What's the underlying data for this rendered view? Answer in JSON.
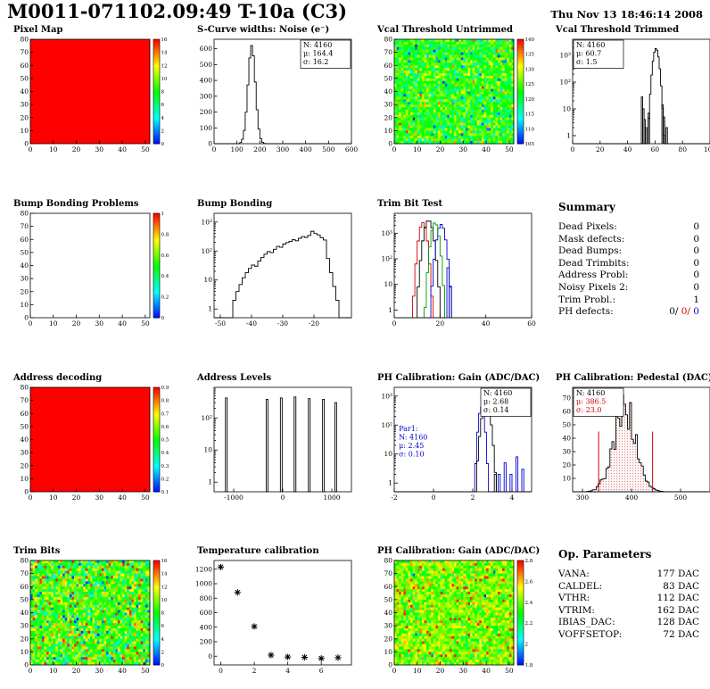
{
  "header": {
    "title": "M0011-071102.09:49 T-10a (C3)",
    "timestamp": "Thu Nov 13 18:46:14 2008"
  },
  "chart_data": [
    {
      "id": "pixel-map",
      "title": "Pixel Map",
      "type": "heatmap",
      "row": 0,
      "col": 0,
      "x": {
        "range": [
          0,
          52
        ],
        "ticks": [
          0,
          10,
          20,
          30,
          40,
          50
        ]
      },
      "y": {
        "range": [
          0,
          80
        ],
        "ticks": [
          0,
          10,
          20,
          30,
          40,
          50,
          60,
          70,
          80
        ]
      },
      "map": {
        "style": "flat",
        "color": "#ff0000"
      },
      "colorbar": {
        "ticks": [
          "0",
          "2",
          "4",
          "6",
          "8",
          "10",
          "12",
          "14",
          "16"
        ]
      }
    },
    {
      "id": "scurve-noise",
      "title": "S-Curve widths: Noise (e⁻)",
      "type": "histogram",
      "row": 0,
      "col": 1,
      "x": {
        "range": [
          0,
          600
        ],
        "ticks": [
          0,
          100,
          200,
          300,
          400,
          500,
          600
        ]
      },
      "y": {
        "range": [
          0,
          660
        ],
        "ticks": [
          0,
          100,
          200,
          300,
          400,
          500,
          600
        ]
      },
      "series": [
        {
          "color": "#000000",
          "binw": 8,
          "gauss": {
            "mean": 164.4,
            "sigma": 16.2,
            "peak": 620
          }
        }
      ],
      "stats": {
        "pos": "tr",
        "lines": [
          {
            "text": "N: 4160",
            "color": "#000000"
          },
          {
            "text": "μ: 164.4",
            "color": "#000000"
          },
          {
            "text": "σ: 16.2",
            "color": "#000000"
          }
        ]
      }
    },
    {
      "id": "vcal-untrimmed",
      "title": "Vcal Threshold Untrimmed",
      "type": "heatmap",
      "row": 0,
      "col": 2,
      "x": {
        "range": [
          0,
          52
        ],
        "ticks": [
          0,
          10,
          20,
          30,
          40,
          50
        ]
      },
      "y": {
        "range": [
          0,
          80
        ],
        "ticks": [
          0,
          10,
          20,
          30,
          40,
          50,
          60,
          70,
          80
        ]
      },
      "map": {
        "style": "noise",
        "mean": 0.52,
        "spread": 0.13,
        "low_frac": 0.02,
        "high_frac": 0.005
      },
      "colorbar": {
        "ticks": [
          "105",
          "110",
          "115",
          "120",
          "125",
          "130",
          "135",
          "140"
        ]
      }
    },
    {
      "id": "vcal-trimmed",
      "title": "Vcal Threshold Trimmed",
      "type": "histogram",
      "row": 0,
      "col": 3,
      "x": {
        "range": [
          0,
          100
        ],
        "ticks": [
          0,
          20,
          40,
          60,
          80,
          100
        ]
      },
      "y": {
        "log": true,
        "range": [
          0.5,
          4000
        ]
      },
      "series": [
        {
          "color": "#000000",
          "binw": 1,
          "gauss": {
            "mean": 60.7,
            "sigma": 1.5,
            "peak": 1800
          },
          "bins": [
            [
              50,
              28
            ],
            [
              51,
              10
            ],
            [
              52,
              4
            ],
            [
              53,
              2
            ],
            [
              55,
              7
            ],
            [
              65,
              14
            ],
            [
              66,
              5
            ],
            [
              68,
              2
            ]
          ]
        }
      ],
      "stats": {
        "pos": "tl",
        "lines": [
          {
            "text": "N: 4160",
            "color": "#000000"
          },
          {
            "text": "μ: 60.7",
            "color": "#000000"
          },
          {
            "text": "σ: 1.5",
            "color": "#000000"
          }
        ]
      }
    },
    {
      "id": "bump-problems",
      "title": "Bump Bonding Problems",
      "type": "heatmap",
      "row": 1,
      "col": 0,
      "x": {
        "range": [
          0,
          52
        ],
        "ticks": [
          0,
          10,
          20,
          30,
          40,
          50
        ]
      },
      "y": {
        "range": [
          0,
          80
        ],
        "ticks": [
          0,
          10,
          20,
          30,
          40,
          50,
          60,
          70,
          80
        ]
      },
      "map": {
        "style": "empty"
      },
      "colorbar": {
        "ticks": [
          "0",
          "0.2",
          "0.4",
          "0.6",
          "0.8",
          "1"
        ]
      }
    },
    {
      "id": "bump-bonding",
      "title": "Bump Bonding",
      "type": "histogram",
      "row": 1,
      "col": 1,
      "x": {
        "range": [
          -52,
          -8
        ],
        "ticks": [
          -50,
          -40,
          -30,
          -20
        ]
      },
      "y": {
        "log": true,
        "range": [
          0.5,
          2000
        ]
      },
      "series": [
        {
          "color": "#000000",
          "binw": 1,
          "bins": [
            [
              -46,
              2
            ],
            [
              -45,
              4
            ],
            [
              -44,
              7
            ],
            [
              -43,
              12
            ],
            [
              -42,
              18
            ],
            [
              -41,
              25
            ],
            [
              -40,
              33
            ],
            [
              -39,
              30
            ],
            [
              -38,
              45
            ],
            [
              -37,
              60
            ],
            [
              -36,
              78
            ],
            [
              -35,
              95
            ],
            [
              -34,
              88
            ],
            [
              -33,
              115
            ],
            [
              -32,
              145
            ],
            [
              -31,
              135
            ],
            [
              -30,
              175
            ],
            [
              -29,
              195
            ],
            [
              -28,
              215
            ],
            [
              -27,
              245
            ],
            [
              -26,
              225
            ],
            [
              -25,
              275
            ],
            [
              -24,
              315
            ],
            [
              -23,
              295
            ],
            [
              -22,
              345
            ],
            [
              -21,
              480
            ],
            [
              -20,
              400
            ],
            [
              -19,
              360
            ],
            [
              -18,
              290
            ],
            [
              -17,
              240
            ],
            [
              -16,
              55
            ],
            [
              -15,
              18
            ],
            [
              -14,
              6
            ],
            [
              -13,
              2
            ]
          ]
        }
      ]
    },
    {
      "id": "trim-bit-test",
      "title": "Trim Bit Test",
      "type": "histogram",
      "row": 1,
      "col": 2,
      "x": {
        "range": [
          0,
          60
        ],
        "ticks": [
          0,
          20,
          40,
          60
        ]
      },
      "y": {
        "log": true,
        "range": [
          0.5,
          6000
        ]
      },
      "series": [
        {
          "color": "#cc0000",
          "binw": 1,
          "gauss": {
            "mean": 12.5,
            "sigma": 1.1,
            "peak": 2600
          }
        },
        {
          "color": "#000000",
          "binw": 1,
          "gauss": {
            "mean": 15.0,
            "sigma": 1.3,
            "peak": 3200
          }
        },
        {
          "color": "#0000cc",
          "binw": 1,
          "gauss": {
            "mean": 20.5,
            "sigma": 1.2,
            "peak": 2200
          },
          "bins": [
            [
              23,
              45
            ],
            [
              24,
              8
            ]
          ]
        },
        {
          "color": "#009900",
          "binw": 1,
          "gauss": {
            "mean": 17.8,
            "sigma": 1.1,
            "peak": 2600
          }
        }
      ]
    },
    {
      "id": "summary",
      "title": "Summary",
      "type": "text",
      "row": 1,
      "col": 3,
      "rows": [
        {
          "label": "Dead Pixels:",
          "value": "0"
        },
        {
          "label": "Mask defects:",
          "value": "0"
        },
        {
          "label": "Dead Bumps:",
          "value": "0"
        },
        {
          "label": "Dead Trimbits:",
          "value": "0"
        },
        {
          "label": "Address Probl:",
          "value": "0"
        },
        {
          "label": "Noisy Pixels 2:",
          "value": "0"
        },
        {
          "label": "Trim Probl.:",
          "value": "1"
        },
        {
          "label": "PH defects:",
          "value_parts": [
            {
              "text": "0/",
              "color": "#000000"
            },
            {
              "text": " 0/",
              "color": "#cc0000"
            },
            {
              "text": " 0",
              "color": "#0000cc"
            }
          ]
        }
      ]
    },
    {
      "id": "address-decoding",
      "title": "Address decoding",
      "type": "heatmap",
      "row": 2,
      "col": 0,
      "x": {
        "range": [
          0,
          52
        ],
        "ticks": [
          0,
          10,
          20,
          30,
          40,
          50
        ]
      },
      "y": {
        "range": [
          0,
          80
        ],
        "ticks": [
          0,
          10,
          20,
          30,
          40,
          50,
          60,
          70,
          80
        ]
      },
      "map": {
        "style": "flat",
        "color": "#ff0000"
      },
      "colorbar": {
        "ticks": [
          "0.1",
          "0.2",
          "0.3",
          "0.4",
          "0.5",
          "0.6",
          "0.7",
          "0.8",
          "0.9"
        ]
      }
    },
    {
      "id": "address-levels",
      "title": "Address Levels",
      "type": "spikes",
      "row": 2,
      "col": 1,
      "x": {
        "range": [
          -1400,
          1400
        ],
        "ticks": [
          -1000,
          0,
          1000
        ]
      },
      "y": {
        "log": true,
        "range": [
          0.5,
          900
        ]
      },
      "spikes": [
        [
          -1150,
          420
        ],
        [
          -320,
          380
        ],
        [
          -30,
          420
        ],
        [
          250,
          450
        ],
        [
          540,
          400
        ],
        [
          830,
          380
        ],
        [
          1080,
          300
        ]
      ]
    },
    {
      "id": "ph-gain-hist",
      "title": "PH Calibration: Gain (ADC/DAC)",
      "type": "histogram",
      "row": 2,
      "col": 2,
      "x": {
        "range": [
          -2,
          5
        ],
        "ticks": [
          -2,
          0,
          2,
          4
        ]
      },
      "y": {
        "log": true,
        "range": [
          0.5,
          2000
        ]
      },
      "series": [
        {
          "color": "#0000cc",
          "binw": 0.1,
          "gauss": {
            "mean": 2.45,
            "sigma": 0.1,
            "peak": 420
          },
          "bins": [
            [
              3.3,
              2
            ],
            [
              3.6,
              5
            ],
            [
              3.9,
              2
            ],
            [
              4.2,
              8
            ],
            [
              4.5,
              3
            ]
          ]
        },
        {
          "color": "#000000",
          "binw": 0.1,
          "gauss": {
            "mean": 2.68,
            "sigma": 0.14,
            "peak": 650
          },
          "bins": [
            [
              3.1,
              2
            ]
          ]
        }
      ],
      "stats": {
        "pos": "tr",
        "lines": [
          {
            "text": "N: 4160",
            "color": "#000000"
          },
          {
            "text": "μ: 2.68",
            "color": "#000000"
          },
          {
            "text": "σ: 0.14",
            "color": "#000000"
          }
        ]
      },
      "stats2": {
        "color": "#0000cc",
        "pos": [
          0.02,
          0.42
        ],
        "lines": [
          "Par1:",
          "N: 4160",
          "μ: 2.45",
          "σ: 0.10"
        ]
      }
    },
    {
      "id": "ph-pedestal",
      "title": "PH Calibration: Pedestal (DAC)",
      "type": "histogram",
      "row": 2,
      "col": 3,
      "x": {
        "range": [
          280,
          560
        ],
        "ticks": [
          300,
          400,
          500
        ]
      },
      "y": {
        "range": [
          0,
          78
        ],
        "ticks": [
          10,
          20,
          30,
          40,
          50,
          60,
          70
        ]
      },
      "series": [
        {
          "color": "#000000",
          "binw": 4,
          "noise": 0.3,
          "fill": "red-dots",
          "gauss": {
            "mean": 386.5,
            "sigma": 23.0,
            "peak": 66
          }
        }
      ],
      "vlines": [
        {
          "x": 333,
          "h": 45,
          "color": "#cc0000"
        },
        {
          "x": 443,
          "h": 45,
          "color": "#cc0000"
        }
      ],
      "stats": {
        "pos": "tl",
        "lines": [
          {
            "text": "N: 4160",
            "color": "#000000"
          },
          {
            "text": "μ: 386.5",
            "color": "#cc0000"
          },
          {
            "text": "σ: 23.0",
            "color": "#cc0000"
          }
        ]
      }
    },
    {
      "id": "trim-bits",
      "title": "Trim Bits",
      "type": "heatmap",
      "row": 3,
      "col": 0,
      "x": {
        "range": [
          0,
          52
        ],
        "ticks": [
          0,
          10,
          20,
          30,
          40,
          50
        ]
      },
      "y": {
        "range": [
          0,
          80
        ],
        "ticks": [
          0,
          10,
          20,
          30,
          40,
          50,
          60,
          70,
          80
        ]
      },
      "map": {
        "style": "noise",
        "mean": 0.55,
        "spread": 0.15,
        "low_frac": 0.02,
        "high_frac": 0.02
      },
      "colorbar": {
        "ticks": [
          "0",
          "2",
          "4",
          "6",
          "8",
          "10",
          "12",
          "14",
          "16"
        ]
      }
    },
    {
      "id": "temp-calibration",
      "title": "Temperature calibration",
      "type": "scatter",
      "row": 3,
      "col": 1,
      "x": {
        "range": [
          -0.4,
          7.8
        ],
        "ticks": [
          0,
          2,
          4,
          6
        ]
      },
      "y": {
        "range": [
          -120,
          1320
        ],
        "ticks": [
          0,
          200,
          400,
          600,
          800,
          1000,
          1200
        ]
      },
      "marker": "asterisk",
      "points": [
        [
          0,
          1230
        ],
        [
          1,
          880
        ],
        [
          2,
          410
        ],
        [
          3,
          15
        ],
        [
          4,
          -10
        ],
        [
          5,
          -15
        ],
        [
          6,
          -30
        ],
        [
          7,
          -20
        ]
      ]
    },
    {
      "id": "ph-gain-map",
      "title": "PH Calibration: Gain (ADC/DAC)",
      "type": "heatmap",
      "row": 3,
      "col": 2,
      "x": {
        "range": [
          0,
          52
        ],
        "ticks": [
          0,
          10,
          20,
          30,
          40,
          50
        ]
      },
      "y": {
        "range": [
          0,
          80
        ],
        "ticks": [
          0,
          10,
          20,
          30,
          40,
          50,
          60,
          70,
          80
        ]
      },
      "map": {
        "style": "noise",
        "mean": 0.62,
        "spread": 0.11,
        "low_frac": 0.003,
        "high_frac": 0.03
      },
      "colorbar": {
        "ticks": [
          "1.8",
          "2",
          "2.2",
          "2.4",
          "2.6",
          "2.8"
        ]
      }
    },
    {
      "id": "op-parameters",
      "title": "Op. Parameters",
      "type": "text",
      "row": 3,
      "col": 3,
      "rows": [
        {
          "label": "VANA:",
          "value": "177 DAC"
        },
        {
          "label": "CALDEL:",
          "value": "83 DAC"
        },
        {
          "label": "VTHR:",
          "value": "112 DAC"
        },
        {
          "label": "VTRIM:",
          "value": "162 DAC"
        },
        {
          "label": "IBIAS_DAC:",
          "value": "128 DAC"
        },
        {
          "label": "VOFFSETOP:",
          "value": "72 DAC"
        }
      ]
    }
  ]
}
